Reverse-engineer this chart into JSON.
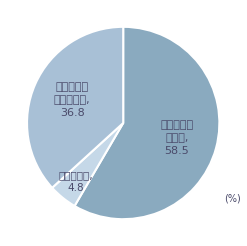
{
  "values": [
    58.5,
    4.8,
    36.8
  ],
  "colors": [
    "#8aaabf",
    "#c5d8e8",
    "#a8c0d6"
  ],
  "startangle": 90,
  "note": "(%)",
  "background_color": "#ffffff",
  "wedge_edge_color": "#ffffff",
  "wedge_linewidth": 1.5,
  "label1": "ノート型パ\nソコン,\n58.5",
  "label2": "タブレット,\n4.8",
  "label3": "デスクトッ\nプパソコン,\n36.8",
  "text_color": "#4a4a6a",
  "fontsize": 8.0
}
